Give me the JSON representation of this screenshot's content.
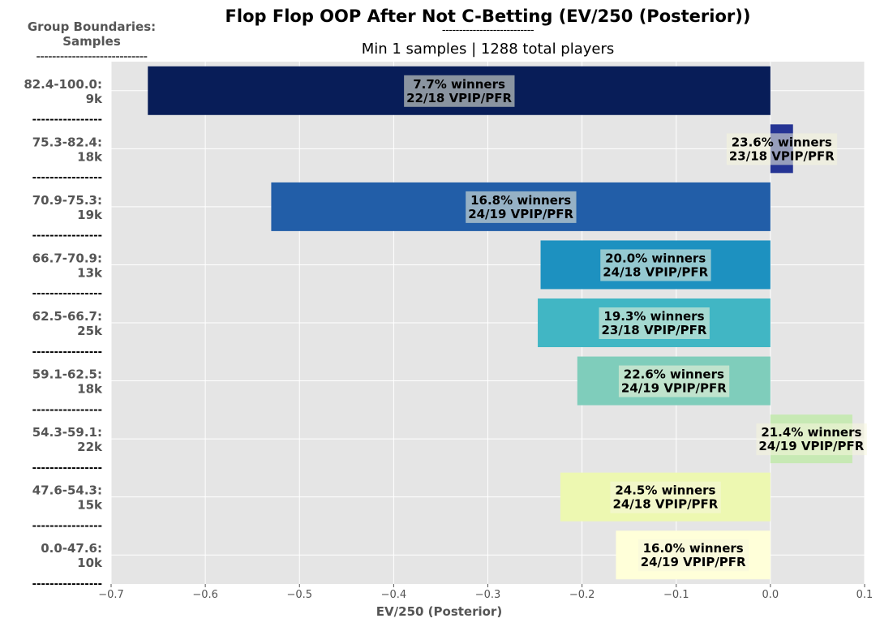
{
  "title": "Flop Flop OOP After Not C-Betting (EV/250 (Posterior))",
  "title_rule": "---------------------------",
  "subtitle": "Min 1 samples | 1288 total players",
  "corner": {
    "line1": "Group Boundaries:",
    "line2": "Samples",
    "rule": "----------------------------"
  },
  "group_separator": "----------------",
  "colors": {
    "plot_background": "#e5e5e5",
    "grid": "#ffffff",
    "label_text": "#555555"
  },
  "chart_data": {
    "type": "bar",
    "orientation": "horizontal",
    "title": "Flop Flop OOP After Not C-Betting (EV/250 (Posterior))",
    "xlabel": "EV/250 (Posterior)",
    "xlim": [
      -0.7,
      0.1
    ],
    "xticks": [
      -0.7,
      -0.6,
      -0.5,
      -0.4,
      -0.3,
      -0.2,
      -0.1,
      0.0,
      0.1
    ],
    "xtick_labels": [
      "−0.7",
      "−0.6",
      "−0.5",
      "−0.4",
      "−0.3",
      "−0.2",
      "−0.1",
      "0.0",
      "0.1"
    ],
    "grid": true,
    "bars": [
      {
        "group": "82.4-100.0:",
        "samples": "9k",
        "value": -0.661,
        "annotation": [
          "7.7% winners",
          "22/18 VPIP/PFR"
        ],
        "color": "#081d58"
      },
      {
        "group": "75.3-82.4:",
        "samples": "18k",
        "value": 0.024,
        "annotation": [
          "23.6% winners",
          "23/18 VPIP/PFR"
        ],
        "color": "#253494"
      },
      {
        "group": "70.9-75.3:",
        "samples": "19k",
        "value": -0.53,
        "annotation": [
          "16.8% winners",
          "24/19 VPIP/PFR"
        ],
        "color": "#225ea8"
      },
      {
        "group": "66.7-70.9:",
        "samples": "13k",
        "value": -0.244,
        "annotation": [
          "20.0% winners",
          "24/18 VPIP/PFR"
        ],
        "color": "#1d91c0"
      },
      {
        "group": "62.5-66.7:",
        "samples": "25k",
        "value": -0.247,
        "annotation": [
          "19.3% winners",
          "23/18 VPIP/PFR"
        ],
        "color": "#41b6c4"
      },
      {
        "group": "59.1-62.5:",
        "samples": "18k",
        "value": -0.205,
        "annotation": [
          "22.6% winners",
          "24/19 VPIP/PFR"
        ],
        "color": "#7fcdbb"
      },
      {
        "group": "54.3-59.1:",
        "samples": "22k",
        "value": 0.087,
        "annotation": [
          "21.4% winners",
          "24/19 VPIP/PFR"
        ],
        "color": "#c7e9b4"
      },
      {
        "group": "47.6-54.3:",
        "samples": "15k",
        "value": -0.223,
        "annotation": [
          "24.5% winners",
          "24/18 VPIP/PFR"
        ],
        "color": "#edf8b1"
      },
      {
        "group": "0.0-47.6:",
        "samples": "10k",
        "value": -0.164,
        "annotation": [
          "16.0% winners",
          "24/19 VPIP/PFR"
        ],
        "color": "#ffffd9"
      }
    ]
  }
}
